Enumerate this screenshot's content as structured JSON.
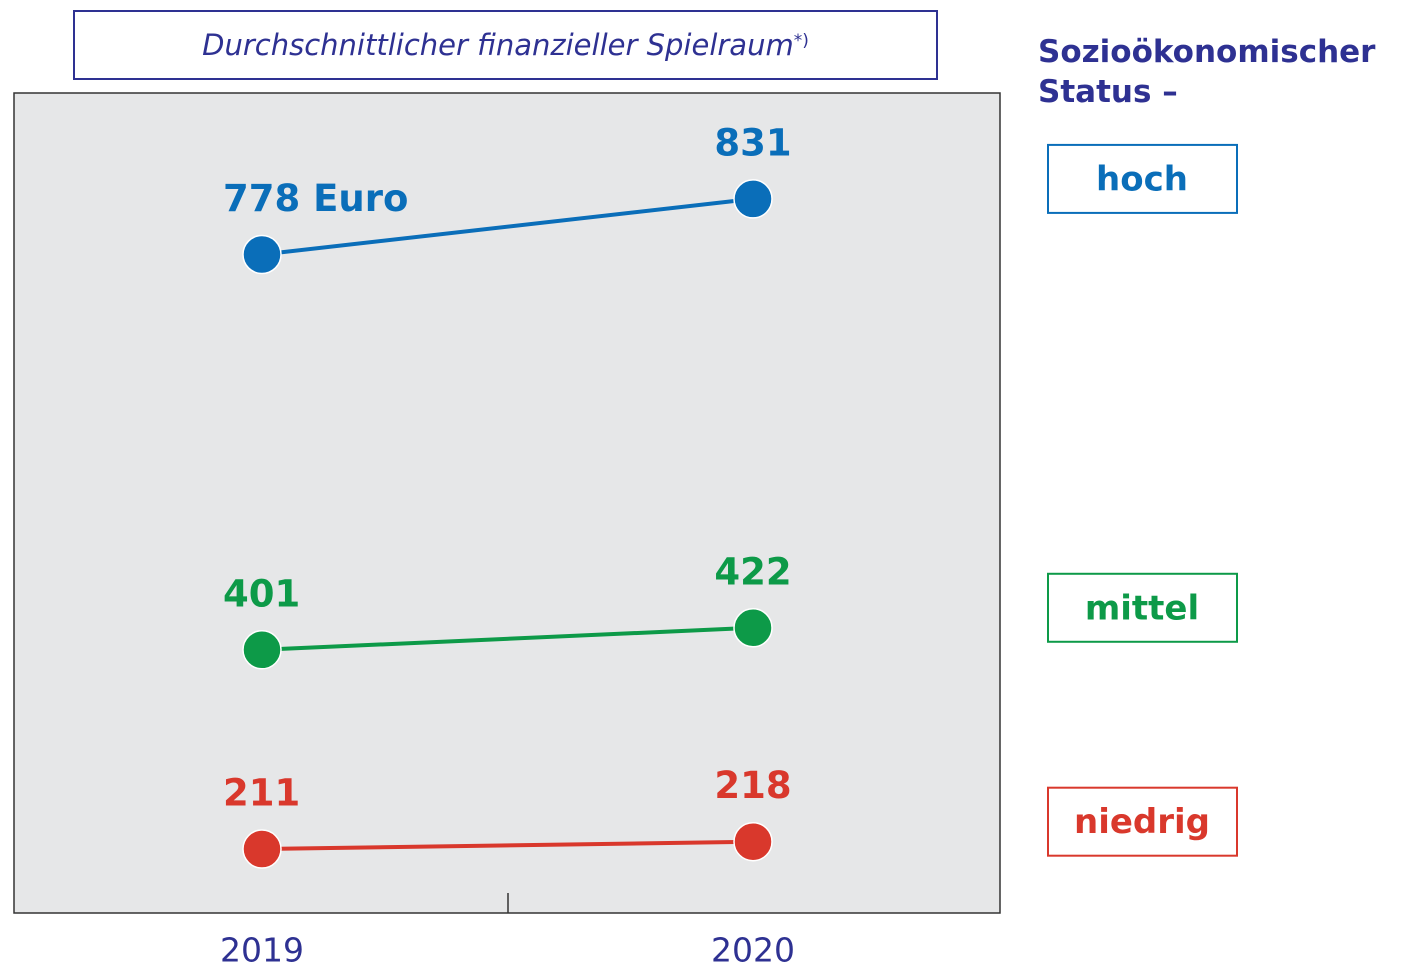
{
  "chart_data": {
    "type": "line",
    "title": "Durchschnittlicher finanzieller Spielraum",
    "title_note": "*)",
    "legend_title": "Sozioökonomischer Status –",
    "categories": [
      "2019",
      "2020"
    ],
    "series": [
      {
        "name": "hoch",
        "color": "#0a6eb9",
        "values": [
          778,
          831
        ],
        "value_labels": [
          "778 Euro",
          "831"
        ]
      },
      {
        "name": "mittel",
        "color": "#0d9a48",
        "values": [
          401,
          422
        ]
      },
      {
        "name": "niedrig",
        "color": "#d9382c",
        "values": [
          211,
          218
        ]
      }
    ],
    "ylim": [
      150,
      932
    ]
  }
}
